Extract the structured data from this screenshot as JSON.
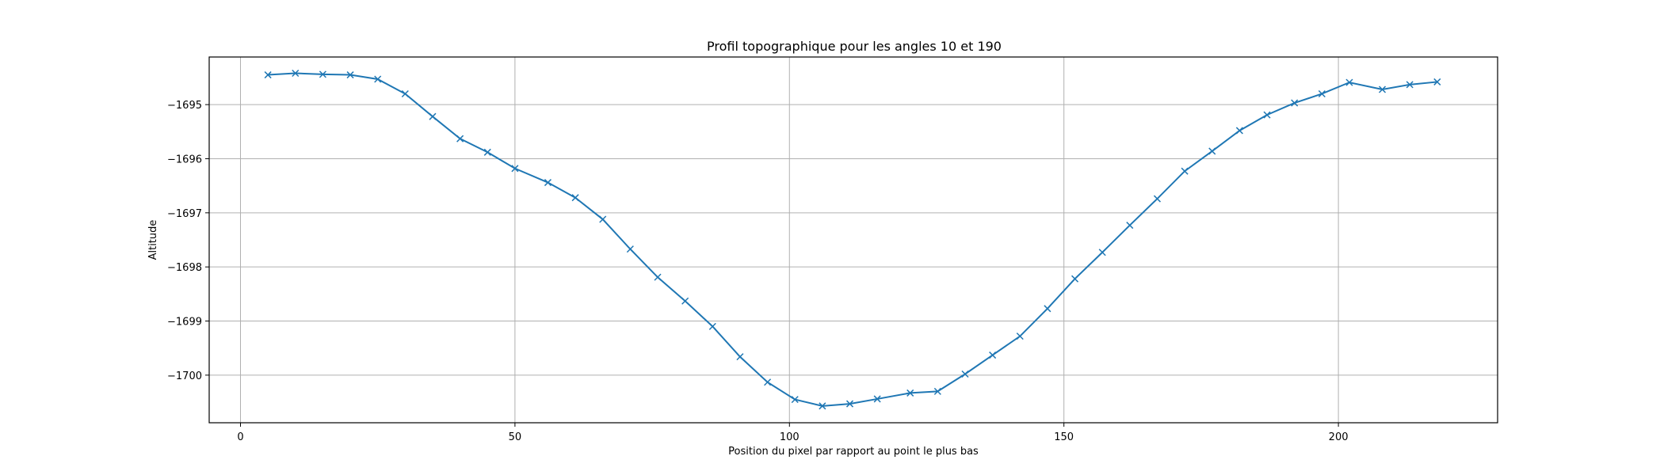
{
  "chart_data": {
    "type": "line",
    "title": "Profil topographique pour les angles 10 et 190",
    "xlabel": "Position du pixel par rapport au point le plus bas",
    "ylabel": "Altitude",
    "xlim": [
      -5.7,
      229
    ],
    "ylim": [
      -1700.88,
      -1694.12
    ],
    "xticks": [
      0,
      50,
      100,
      150,
      200
    ],
    "xtick_labels": [
      "0",
      "50",
      "100",
      "150",
      "200"
    ],
    "yticks": [
      -1700,
      -1699,
      -1698,
      -1697,
      -1696,
      -1695
    ],
    "ytick_labels": [
      "−1700",
      "−1699",
      "−1698",
      "−1697",
      "−1696",
      "−1695"
    ],
    "grid": true,
    "color": "#1f77b4",
    "marker": "x",
    "series": [
      {
        "x": [
          5,
          10,
          15,
          20,
          25,
          30,
          35,
          40,
          45,
          50,
          56,
          61,
          66,
          71,
          76,
          81,
          86,
          91,
          96,
          101,
          106,
          111,
          116,
          122,
          127,
          132,
          137,
          142,
          147,
          152,
          157,
          162,
          167,
          172,
          177,
          182,
          187,
          192,
          197,
          202,
          208,
          213,
          218
        ],
        "y": [
          -1694.45,
          -1694.42,
          -1694.44,
          -1694.45,
          -1694.53,
          -1694.8,
          -1695.22,
          -1695.63,
          -1695.88,
          -1696.18,
          -1696.44,
          -1696.72,
          -1697.12,
          -1697.67,
          -1698.19,
          -1698.63,
          -1699.1,
          -1699.66,
          -1700.13,
          -1700.45,
          -1700.57,
          -1700.53,
          -1700.44,
          -1700.33,
          -1700.3,
          -1699.98,
          -1699.63,
          -1699.28,
          -1698.77,
          -1698.22,
          -1697.73,
          -1697.23,
          -1696.74,
          -1696.23,
          -1695.86,
          -1695.48,
          -1695.19,
          -1694.97,
          -1694.8,
          -1694.59,
          -1694.72,
          -1694.63,
          -1694.58
        ]
      }
    ]
  }
}
